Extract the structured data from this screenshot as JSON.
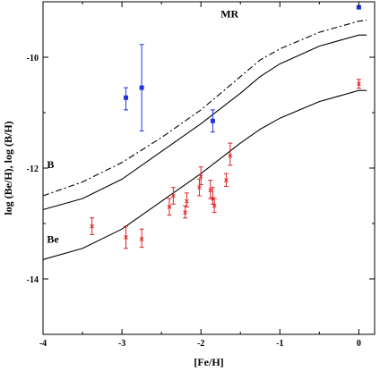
{
  "chart_data": {
    "type": "scatter",
    "title": "",
    "xlabel": "[Fe/H]",
    "ylabel": "log (Be/H),  log (B/H)",
    "xlim": [
      -4,
      0.2
    ],
    "ylim": [
      -15,
      -9
    ],
    "xticks": [
      -4,
      -3,
      -2,
      -1,
      0
    ],
    "xtick_labels": [
      "-4",
      "-3",
      "-2",
      "-1",
      "0"
    ],
    "yticks": [
      -10,
      -12,
      -14
    ],
    "ytick_labels": [
      "-10",
      "-12",
      "-14"
    ],
    "grid": false,
    "annotations": [
      {
        "text": "MR",
        "x": -1.75,
        "y": -9.28
      },
      {
        "text": "B",
        "x": -3.95,
        "y": -12.0
      },
      {
        "text": "Be",
        "x": -3.95,
        "y": -13.35
      }
    ],
    "colors": {
      "B": "#2233dd",
      "Be": "#dd2222",
      "curves": "#000000"
    },
    "series": [
      {
        "kind": "points",
        "marker": "square",
        "color": "#2233dd",
        "points": [
          {
            "x": -2.95,
            "y": -10.73,
            "ylo": -10.95,
            "yhi": -10.55
          },
          {
            "x": -2.75,
            "y": -10.55,
            "ylo": -11.33,
            "yhi": -9.77
          },
          {
            "x": -1.85,
            "y": -11.15,
            "ylo": -11.35,
            "yhi": -10.95
          },
          {
            "x": 0.0,
            "y": -9.1,
            "ylo": -9.12,
            "yhi": -9.08
          }
        ]
      },
      {
        "kind": "points",
        "marker": "cross",
        "color": "#dd2222",
        "points": [
          {
            "x": -3.38,
            "y": -13.05,
            "ylo": -13.2,
            "yhi": -12.9
          },
          {
            "x": -2.95,
            "y": -13.25,
            "ylo": -13.45,
            "yhi": -13.05
          },
          {
            "x": -2.75,
            "y": -13.28,
            "ylo": -13.43,
            "yhi": -13.1
          },
          {
            "x": -2.4,
            "y": -12.7,
            "ylo": -12.85,
            "yhi": -12.55
          },
          {
            "x": -2.35,
            "y": -12.5,
            "ylo": -12.65,
            "yhi": -12.35
          },
          {
            "x": -2.2,
            "y": -12.8,
            "ylo": -12.9,
            "yhi": -12.68
          },
          {
            "x": -2.18,
            "y": -12.6,
            "ylo": -12.7,
            "yhi": -12.45
          },
          {
            "x": -2.02,
            "y": -12.35,
            "ylo": -12.5,
            "yhi": -12.2
          },
          {
            "x": -2.0,
            "y": -12.15,
            "ylo": -12.3,
            "yhi": -11.98
          },
          {
            "x": -1.88,
            "y": -12.4,
            "ylo": -12.55,
            "yhi": -12.22
          },
          {
            "x": -1.85,
            "y": -12.55,
            "ylo": -12.65,
            "yhi": -12.35
          },
          {
            "x": -1.83,
            "y": -12.68,
            "ylo": -12.8,
            "yhi": -12.55
          },
          {
            "x": -1.68,
            "y": -12.22,
            "ylo": -12.33,
            "yhi": -12.1
          },
          {
            "x": -1.63,
            "y": -11.78,
            "ylo": -11.95,
            "yhi": -11.55
          },
          {
            "x": 0.0,
            "y": -10.48,
            "ylo": -10.56,
            "yhi": -10.4
          }
        ]
      },
      {
        "kind": "curve",
        "name": "",
        "dash": "dashdot",
        "color": "#000000",
        "points": [
          [
            -4,
            -12.5
          ],
          [
            -3.5,
            -12.25
          ],
          [
            -3.0,
            -11.9
          ],
          [
            -2.5,
            -11.45
          ],
          [
            -2.0,
            -10.95
          ],
          [
            -1.5,
            -10.35
          ],
          [
            -1.25,
            -10.05
          ],
          [
            -1.0,
            -9.85
          ],
          [
            -0.5,
            -9.55
          ],
          [
            0.0,
            -9.35
          ],
          [
            0.1,
            -9.33
          ]
        ]
      },
      {
        "kind": "curve",
        "name": "",
        "dash": "solid",
        "color": "#000000",
        "points": [
          [
            -4,
            -12.75
          ],
          [
            -3.5,
            -12.55
          ],
          [
            -3.0,
            -12.2
          ],
          [
            -2.5,
            -11.7
          ],
          [
            -2.0,
            -11.2
          ],
          [
            -1.5,
            -10.65
          ],
          [
            -1.25,
            -10.35
          ],
          [
            -1.0,
            -10.12
          ],
          [
            -0.5,
            -9.8
          ],
          [
            0.0,
            -9.6
          ],
          [
            0.1,
            -9.6
          ]
        ]
      },
      {
        "kind": "curve",
        "name": "",
        "dash": "solid",
        "color": "#000000",
        "points": [
          [
            -4,
            -13.65
          ],
          [
            -3.5,
            -13.45
          ],
          [
            -3.0,
            -13.1
          ],
          [
            -2.5,
            -12.6
          ],
          [
            -2.0,
            -12.1
          ],
          [
            -1.5,
            -11.55
          ],
          [
            -1.25,
            -11.3
          ],
          [
            -1.0,
            -11.1
          ],
          [
            -0.5,
            -10.8
          ],
          [
            0.0,
            -10.6
          ],
          [
            0.1,
            -10.6
          ]
        ]
      }
    ]
  }
}
